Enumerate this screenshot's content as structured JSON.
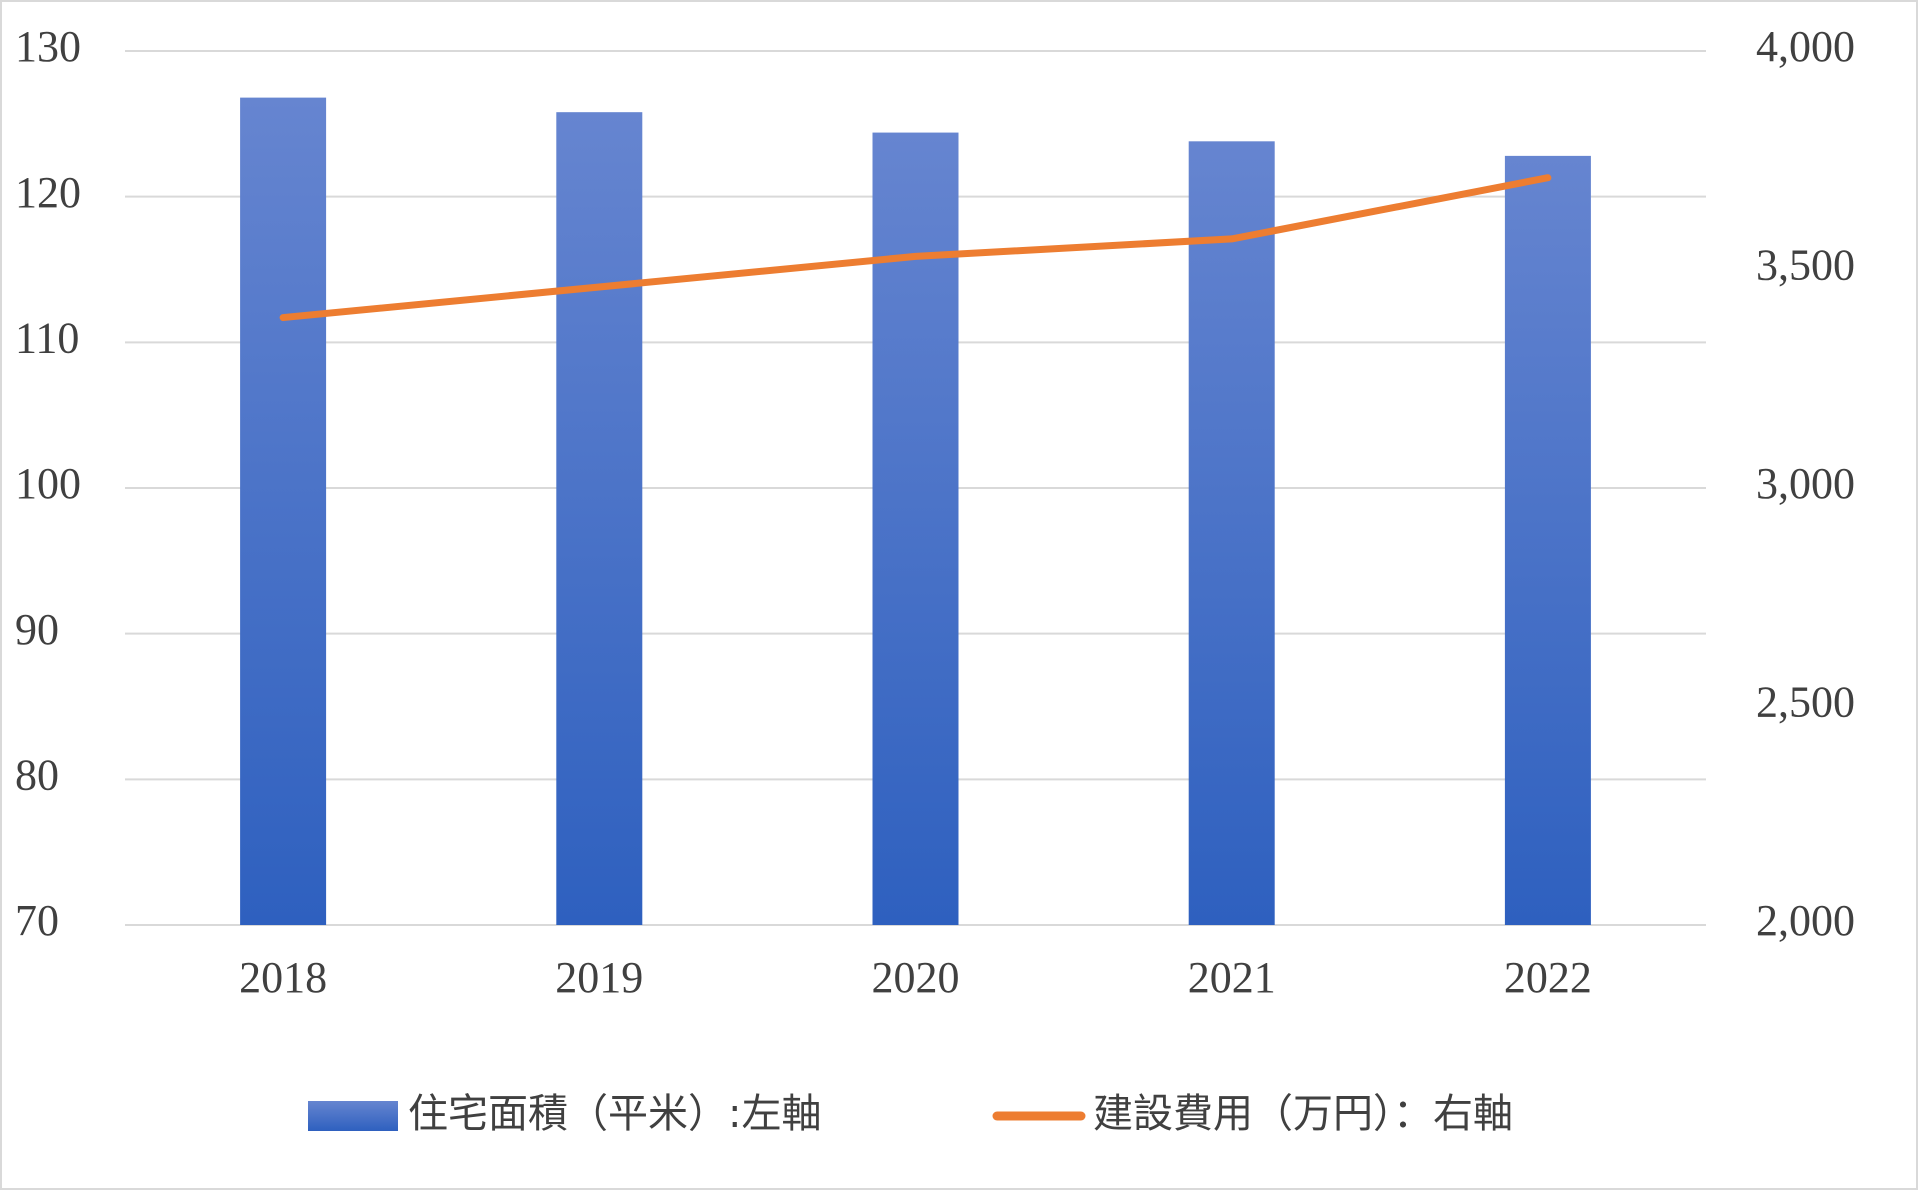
{
  "chart_data": {
    "type": "bar",
    "categories": [
      "2018",
      "2019",
      "2020",
      "2021",
      "2022"
    ],
    "series": [
      {
        "name": "住宅面積（平米）:左軸",
        "type": "bar",
        "color": "#4472c4",
        "values": [
          126.8,
          125.8,
          124.4,
          123.8,
          122.8
        ]
      },
      {
        "name": "建設費用（万円）：右軸",
        "type": "line",
        "color": "#ed7d31",
        "axis": "y2",
        "values": [
          3390,
          3460,
          3530,
          3570,
          3710
        ]
      }
    ],
    "ylim": [
      70,
      130
    ],
    "yticks": [
      70,
      80,
      90,
      100,
      110,
      120,
      130
    ],
    "y2lim": [
      2000,
      4000
    ],
    "y2ticks": [
      {
        "value": 2000,
        "label": "2,000"
      },
      {
        "value": 2500,
        "label": "2,500"
      },
      {
        "value": 3000,
        "label": "3,000"
      },
      {
        "value": 3500,
        "label": "3,500"
      },
      {
        "value": 4000,
        "label": "4,000"
      }
    ],
    "grid": true,
    "legend": "bottom"
  }
}
